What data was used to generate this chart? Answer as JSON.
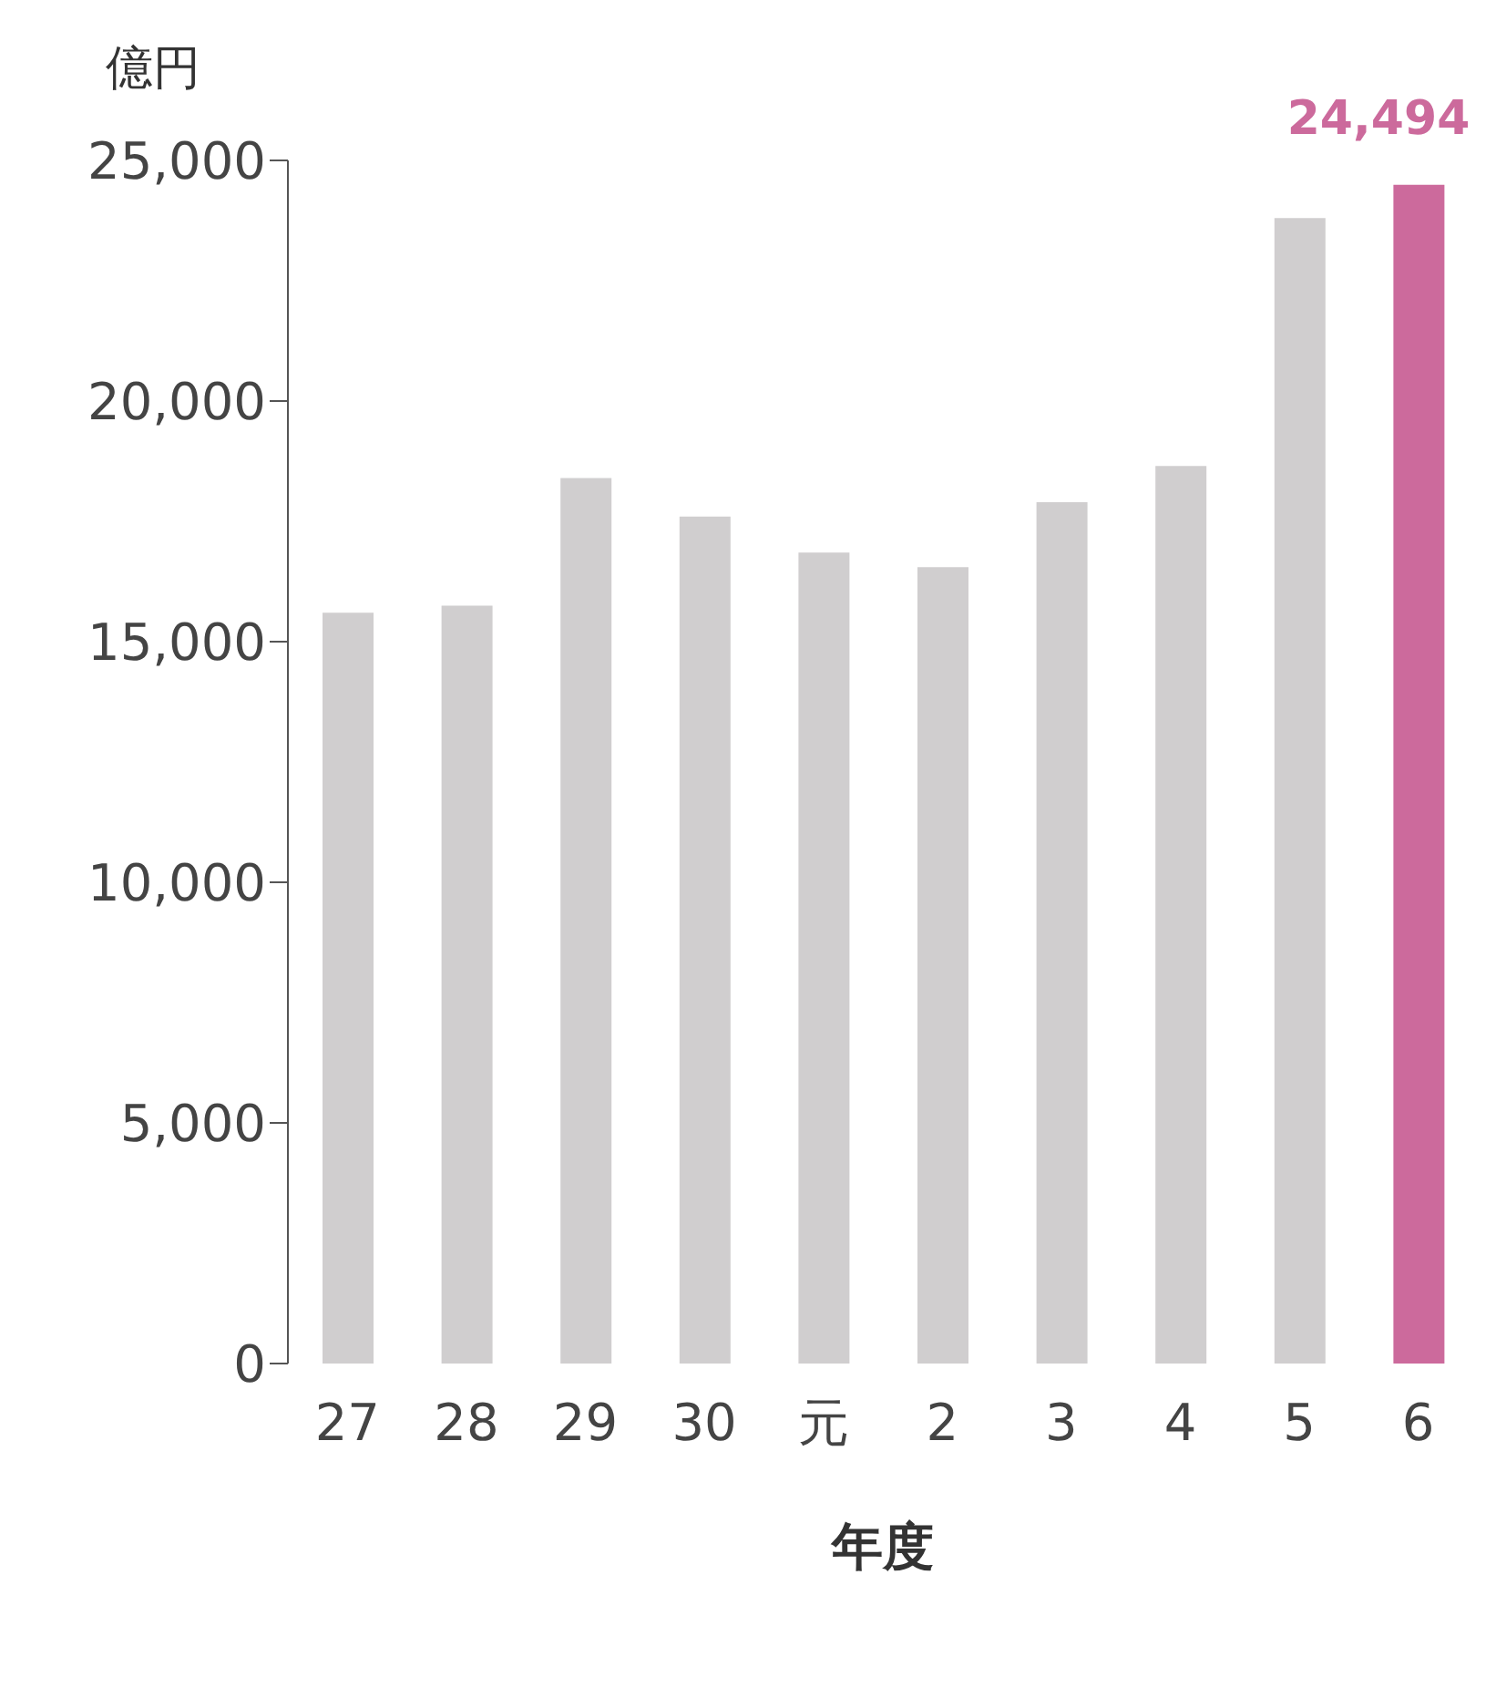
{
  "chart_data": {
    "type": "bar",
    "ylabel": "億円",
    "xlabel": "年度",
    "categories": [
      "27",
      "28",
      "29",
      "30",
      "元",
      "2",
      "3",
      "4",
      "5",
      "6"
    ],
    "values": [
      15600,
      15750,
      18400,
      17600,
      16850,
      16550,
      17900,
      18650,
      23800,
      24494
    ],
    "colors": [
      "#d0cecf",
      "#d0cecf",
      "#d0cecf",
      "#d0cecf",
      "#d0cecf",
      "#d0cecf",
      "#d0cecf",
      "#d0cecf",
      "#d0cecf",
      "#cc6a9c"
    ],
    "value_labels": [
      null,
      null,
      null,
      null,
      null,
      null,
      null,
      null,
      null,
      "24,494"
    ],
    "ylim": [
      0,
      25000
    ],
    "yticks": [
      0,
      {
        "value": 5000,
        "label": "5,000"
      },
      {
        "value": 10000,
        "label": "10,000"
      },
      {
        "value": 15000,
        "label": "15,000"
      },
      {
        "value": 20000,
        "label": "20,000"
      },
      {
        "value": 25000,
        "label": "25,000"
      }
    ],
    "grid": false,
    "legend": false
  }
}
